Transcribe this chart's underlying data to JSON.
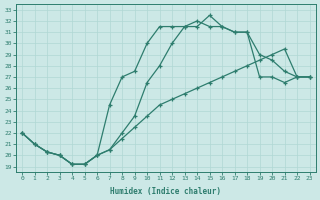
{
  "xlabel": "Humidex (Indice chaleur)",
  "bg_color": "#cce8e6",
  "grid_color": "#b0d8d4",
  "line_color": "#2e7d6e",
  "xlim": [
    -0.5,
    23.5
  ],
  "ylim": [
    18.5,
    33.5
  ],
  "xticks": [
    0,
    1,
    2,
    3,
    4,
    5,
    6,
    7,
    8,
    9,
    10,
    11,
    12,
    13,
    14,
    15,
    16,
    17,
    18,
    19,
    20,
    21,
    22,
    23
  ],
  "yticks": [
    19,
    20,
    21,
    22,
    23,
    24,
    25,
    26,
    27,
    28,
    29,
    30,
    31,
    32,
    33
  ],
  "line1_x": [
    0,
    1,
    2,
    3,
    4,
    5,
    6,
    7,
    8,
    9,
    10,
    11,
    12,
    13,
    14,
    15,
    16,
    17,
    18,
    19,
    20,
    21,
    22,
    23
  ],
  "line1_y": [
    22.0,
    21.0,
    20.3,
    20.0,
    19.2,
    19.2,
    20.0,
    24.5,
    27.0,
    27.5,
    30.0,
    31.5,
    31.5,
    31.5,
    32.0,
    31.5,
    31.5,
    31.0,
    31.0,
    27.0,
    27.0,
    26.5,
    27.0,
    27.0
  ],
  "line2_x": [
    0,
    1,
    2,
    3,
    4,
    5,
    6,
    7,
    8,
    9,
    10,
    11,
    12,
    13,
    14,
    15,
    16,
    17,
    18,
    19,
    20,
    21,
    22,
    23
  ],
  "line2_y": [
    22.0,
    21.0,
    20.3,
    20.0,
    19.2,
    19.2,
    20.0,
    20.5,
    22.0,
    23.5,
    26.5,
    28.0,
    30.0,
    31.5,
    31.5,
    32.5,
    31.5,
    31.0,
    31.0,
    29.0,
    28.5,
    27.5,
    27.0,
    27.0
  ],
  "line3_x": [
    0,
    1,
    2,
    3,
    4,
    5,
    6,
    7,
    8,
    9,
    10,
    11,
    12,
    13,
    14,
    15,
    16,
    17,
    18,
    19,
    20,
    21,
    22,
    23
  ],
  "line3_y": [
    22.0,
    21.0,
    20.3,
    20.0,
    19.2,
    19.2,
    20.0,
    20.5,
    21.5,
    22.5,
    23.5,
    24.5,
    25.0,
    25.5,
    26.0,
    26.5,
    27.0,
    27.5,
    28.0,
    28.5,
    29.0,
    29.5,
    27.0,
    27.0
  ]
}
